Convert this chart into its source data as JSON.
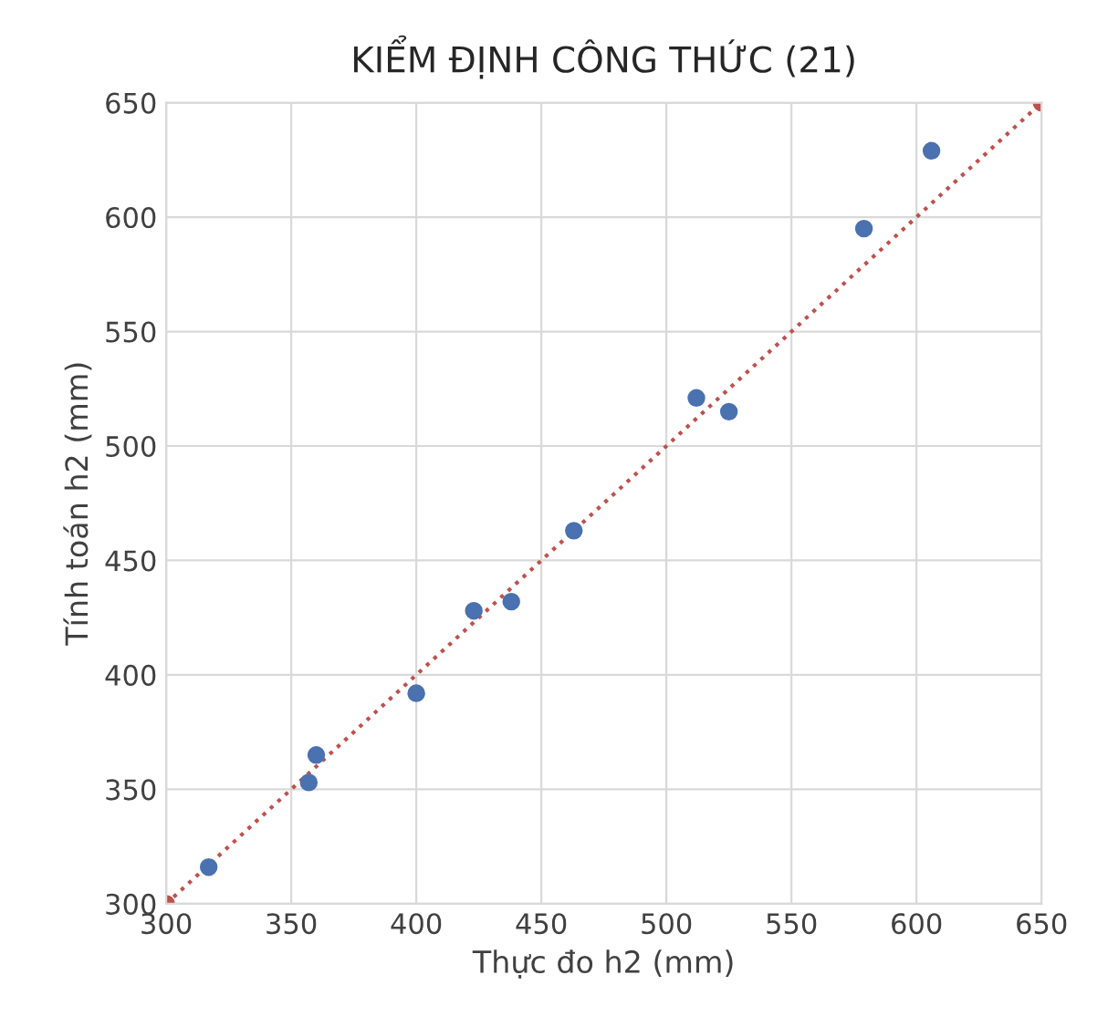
{
  "chart_data": {
    "type": "scatter",
    "title": "KIỂM ĐỊNH CÔNG THỨC (21)",
    "xlabel": "Thực đo h2 (mm)",
    "ylabel": "Tính toán h2 (mm)",
    "xlim": [
      300,
      650
    ],
    "ylim": [
      300,
      650
    ],
    "xticks": [
      300,
      350,
      400,
      450,
      500,
      550,
      600,
      650
    ],
    "yticks": [
      300,
      350,
      400,
      450,
      500,
      550,
      600,
      650
    ],
    "grid": true,
    "marker": "circle",
    "series": [
      {
        "color": "#4a71b0",
        "x": [
          317,
          357,
          360,
          400,
          423,
          438,
          463,
          512,
          525,
          579,
          606
        ],
        "values": [
          316,
          353,
          365,
          392,
          428,
          432,
          463,
          521,
          515,
          595,
          629
        ]
      },
      {
        "type": "line",
        "color": "#c0504d",
        "line_style": "dotted",
        "x": [
          300,
          650
        ],
        "values": [
          300,
          650
        ]
      }
    ]
  }
}
